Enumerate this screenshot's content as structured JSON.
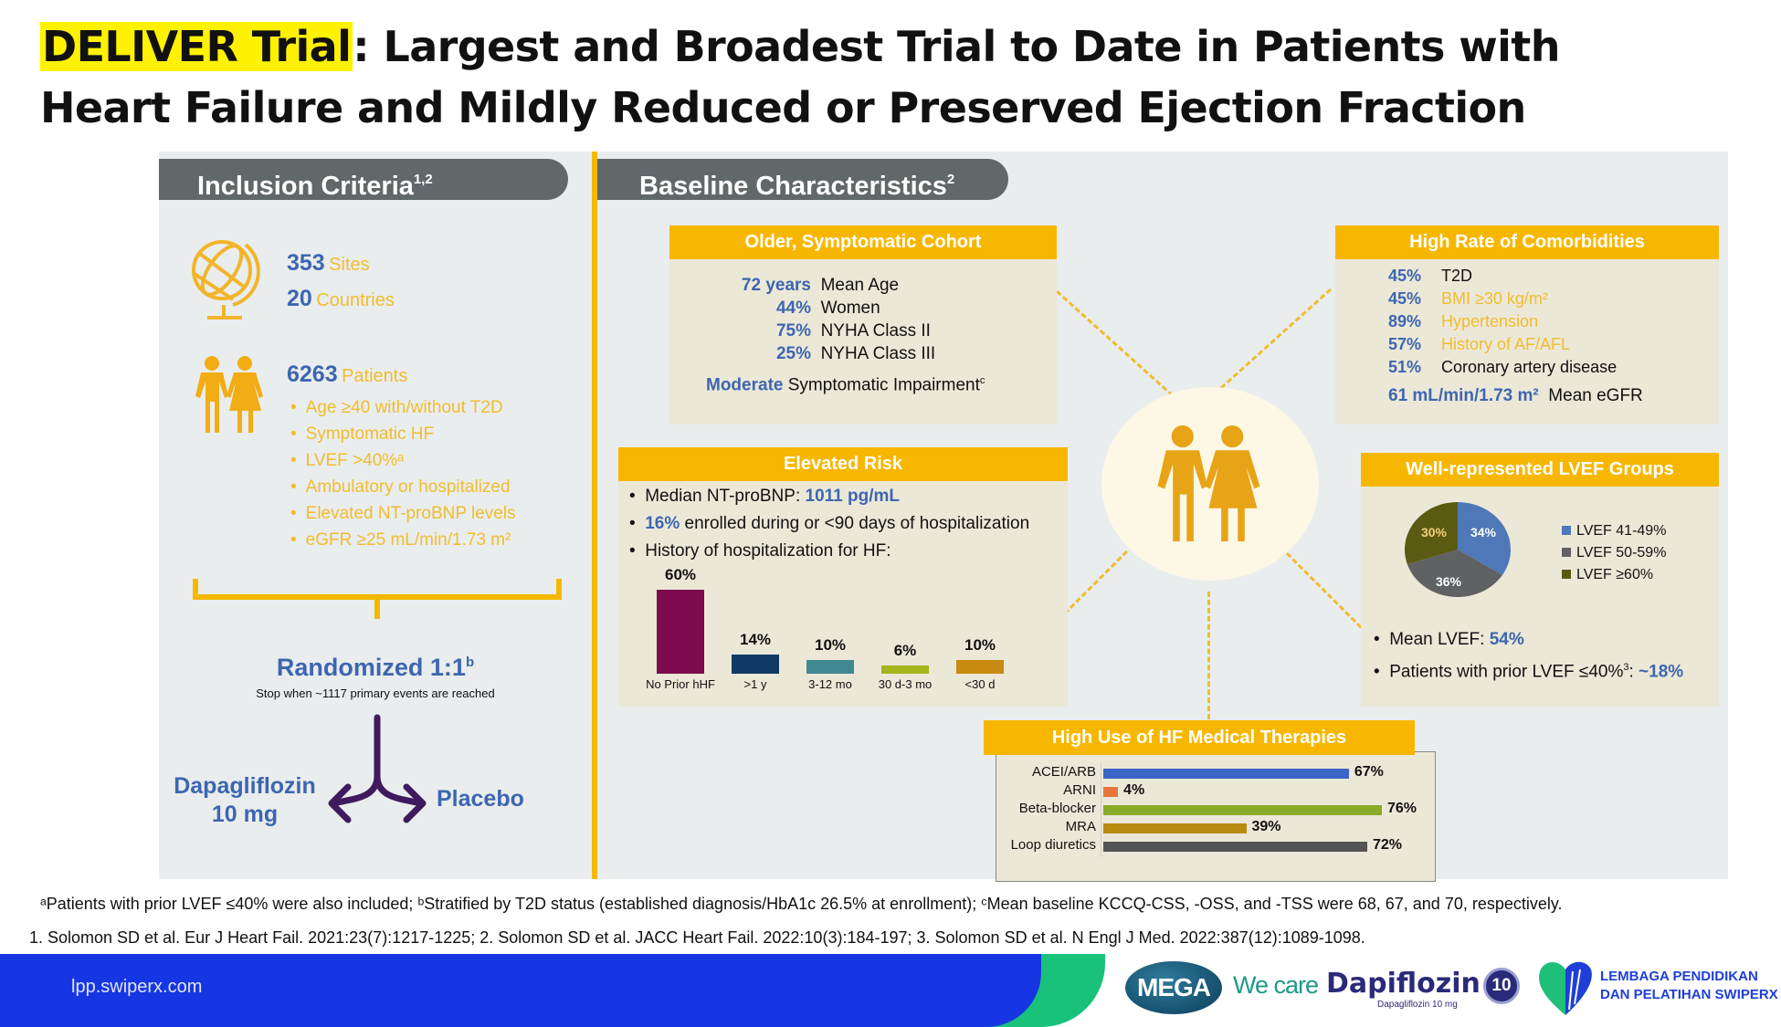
{
  "title": {
    "highlight": "DELIVER Trial",
    "line1_rest": ": Largest and Broadest Trial to Date in Patients with",
    "line2": "Heart Failure and Mildly Reduced or Preserved Ejection Fraction"
  },
  "inclusion": {
    "header": "Inclusion Criteria",
    "header_sup": "1,2",
    "sites_num": "353",
    "sites_label": "Sites",
    "countries_num": "20",
    "countries_label": "Countries",
    "patients_num": "6263",
    "patients_label": "Patients",
    "criteria": [
      "Age ≥40 with/without T2D",
      "Symptomatic HF",
      "LVEF >40%ᵃ",
      "Ambulatory or hospitalized",
      "Elevated NT-proBNP levels",
      "eGFR ≥25 mL/min/1.73 m²"
    ],
    "randomized": "Randomized 1:1",
    "randomized_sup": "b",
    "stop_note": "Stop when ~1117 primary events are reached",
    "arm_left_1": "Dapagliflozin",
    "arm_left_2": "10 mg",
    "arm_right": "Placebo"
  },
  "baseline": {
    "header": "Baseline Characteristics",
    "header_sup": "2",
    "cohort": {
      "title": "Older, Symptomatic Cohort",
      "rows": [
        {
          "value": "72 years",
          "label": "Mean Age"
        },
        {
          "value": "44%",
          "label": "Women"
        },
        {
          "value": "75%",
          "label": "NYHA Class II"
        },
        {
          "value": "25%",
          "label": "NYHA Class III"
        }
      ],
      "moderate": "Moderate",
      "moderate_rest": "Symptomatic Impairment",
      "moderate_sup": "c"
    },
    "comorbidities": {
      "title": "High Rate of Comorbidities",
      "rows": [
        {
          "value": "45%",
          "label": "T2D",
          "color": "#111111"
        },
        {
          "value": "45%",
          "label": "BMI ≥30 kg/m²",
          "color": "#f2bc2e"
        },
        {
          "value": "89%",
          "label": "Hypertension",
          "color": "#f2bc2e"
        },
        {
          "value": "57%",
          "label": "History of AF/AFL",
          "color": "#f2bc2e"
        },
        {
          "value": "51%",
          "label": "Coronary artery disease",
          "color": "#111111"
        }
      ],
      "egfr_value": "61 mL/min/1.73 m²",
      "egfr_label": "Mean eGFR"
    },
    "risk": {
      "title": "Elevated Risk",
      "b1_pre": "Median NT-proBNP: ",
      "b1_val": "1011 pg/mL",
      "b2_val": "16%",
      "b2_post": " enrolled during or <90 days of hospitalization",
      "b3": "History of hospitalization for HF:"
    },
    "lvef": {
      "title": "Well-represented LVEF Groups",
      "mean_pre": "Mean LVEF: ",
      "mean_val": "54%",
      "prior_pre": "Patients with prior LVEF ≤40%",
      "prior_sup": "3",
      "prior_colon": ": ",
      "prior_val": "~18%"
    },
    "therapies": {
      "title": "High Use of HF Medical Therapies"
    }
  },
  "chart_data": [
    {
      "type": "bar",
      "title": "History of hospitalization for HF",
      "categories": [
        "No Prior hHF",
        ">1 y",
        "3-12 mo",
        "30 d-3 mo",
        "<30 d"
      ],
      "values": [
        60,
        14,
        10,
        6,
        10
      ],
      "value_labels": [
        "60%",
        "14%",
        "10%",
        "6%",
        "10%"
      ],
      "colors": [
        "#7d0a4e",
        "#0f3a66",
        "#3f8791",
        "#a3b51c",
        "#c88a10"
      ],
      "ylim": [
        0,
        60
      ]
    },
    {
      "type": "pie",
      "title": "Well-represented LVEF Groups",
      "labels": [
        "LVEF 41-49%",
        "LVEF 50-59%",
        "LVEF ≥60%"
      ],
      "values": [
        34,
        36,
        30
      ],
      "value_labels": [
        "34%",
        "36%",
        "30%"
      ],
      "colors": [
        "#4f78b8",
        "#5f6163",
        "#5a5a12"
      ],
      "legend": "right"
    },
    {
      "type": "bar",
      "orientation": "horizontal",
      "title": "High Use of HF Medical Therapies",
      "categories": [
        "ACEI/ARB",
        "ARNI",
        "Beta-blocker",
        "MRA",
        "Loop diuretics"
      ],
      "values": [
        67,
        4,
        76,
        39,
        72
      ],
      "value_labels": [
        "67%",
        "4%",
        "76%",
        "39%",
        "72%"
      ],
      "colors": [
        "#3b66c8",
        "#e8763c",
        "#8aab28",
        "#b88a10",
        "#555555"
      ],
      "xlim": [
        0,
        76
      ]
    }
  ],
  "footnotes": {
    "line1": "ᵃPatients with prior LVEF ≤40% were also included; ᵇStratified by T2D status (established diagnosis/HbA1c 26.5% at enrollment); ᶜMean baseline KCCQ-CSS, -OSS, and -TSS were 68, 67, and 70, respectively.",
    "line2": "1. Solomon SD et al. Eur J Heart Fail. 2021:23(7):1217-1225; 2. Solomon SD et al. JACC Heart Fail. 2022:10(3):184-197; 3. Solomon SD et al. N Engl J Med. 2022:387(12):1089-1098."
  },
  "footer": {
    "site": "lpp.swiperx.com",
    "mega": "MEGA",
    "we_care": "We care",
    "brand": "Dapiflozin",
    "brand_sub": "Dapagliflozin 10 mg",
    "badge": "10",
    "org_line1": "LEMBAGA PENDIDIKAN",
    "org_line2": "DAN PELATIHAN SWIPERX"
  }
}
